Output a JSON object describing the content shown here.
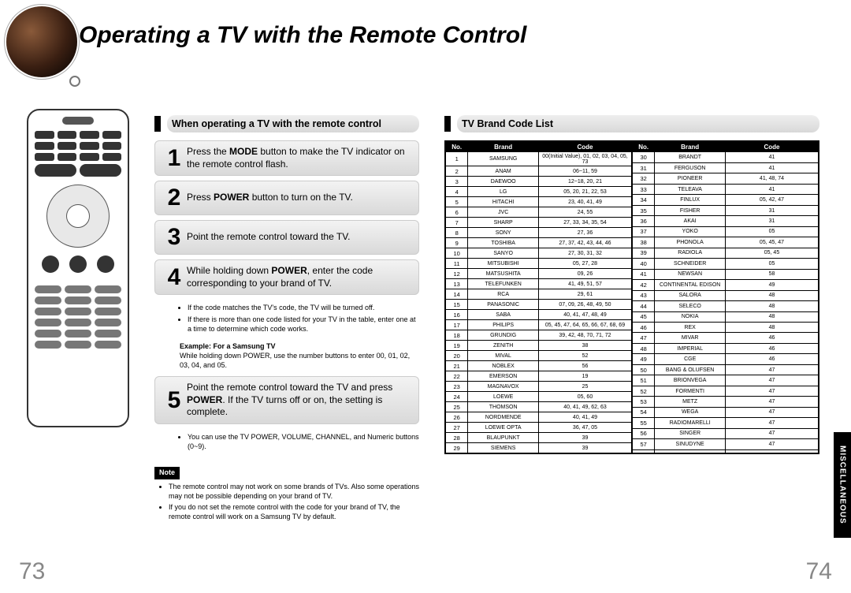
{
  "title": "Operating a TV with the Remote Control",
  "page_left": "73",
  "page_right": "74",
  "side_tab": "MISCELLANEOUS",
  "left": {
    "header": "When operating a TV with the remote control",
    "steps": [
      {
        "num": "1",
        "text_html": "Press the <b>MODE</b> button to make the TV indicator on the remote control flash."
      },
      {
        "num": "2",
        "text_html": "Press <b>POWER</b> button to turn on the TV."
      },
      {
        "num": "3",
        "text_html": "Point the remote control toward the TV."
      },
      {
        "num": "4",
        "text_html": "While holding down <b>POWER</b>, enter the code corresponding to your brand of TV."
      },
      {
        "num": "5",
        "text_html": "Point the remote control toward the TV and press <b>POWER</b>. If the TV turns off or on, the setting is complete."
      }
    ],
    "after_step4": [
      "If the code matches the TV's code, the TV will be turned off.",
      "If there is more than one code listed for your TV in the table, enter one at a time to determine which code works."
    ],
    "example_label": "Example: For a Samsung TV",
    "example_text": "While holding down POWER, use the number buttons to enter 00, 01, 02, 03, 04, and 05.",
    "after_step5": [
      "You can use the TV POWER, VOLUME, CHANNEL, and Numeric buttons (0~9)."
    ],
    "note_label": "Note",
    "notes": [
      "The remote control may not work on some brands of TVs. Also some operations may not be possible depending on your brand of TV.",
      "If you do not set the remote control with the code for your brand of TV, the remote control will work on a Samsung TV by default."
    ]
  },
  "right": {
    "header": "TV Brand Code List",
    "columns": [
      "No.",
      "Brand",
      "Code"
    ],
    "rowsA": [
      [
        "1",
        "SAMSUNG",
        "00(Initial Value), 01, 02, 03, 04, 05, 73"
      ],
      [
        "2",
        "ANAM",
        "06~11, 59"
      ],
      [
        "3",
        "DAEWOO",
        "12~18, 20, 21"
      ],
      [
        "4",
        "LG",
        "05, 20, 21, 22, 53"
      ],
      [
        "5",
        "HITACHI",
        "23, 40, 41, 49"
      ],
      [
        "6",
        "JVC",
        "24, 55"
      ],
      [
        "7",
        "SHARP",
        "27, 33, 34, 35, 54"
      ],
      [
        "8",
        "SONY",
        "27, 36"
      ],
      [
        "9",
        "TOSHIBA",
        "27, 37, 42, 43, 44, 46"
      ],
      [
        "10",
        "SANYO",
        "27, 30, 31, 32"
      ],
      [
        "11",
        "MITSUBISHI",
        "05, 27, 28"
      ],
      [
        "12",
        "MATSUSHITA",
        "09, 26"
      ],
      [
        "13",
        "TELEFUNKEN",
        "41, 49, 51, 57"
      ],
      [
        "14",
        "RCA",
        "29, 61"
      ],
      [
        "15",
        "PANASONIC",
        "07, 09, 26, 48, 49, 50"
      ],
      [
        "16",
        "SABA",
        "40, 41, 47, 48, 49"
      ],
      [
        "17",
        "PHILIPS",
        "05, 45, 47, 64, 65, 66, 67, 68, 69"
      ],
      [
        "18",
        "GRUNDIG",
        "39, 42, 48, 70, 71, 72"
      ],
      [
        "19",
        "ZENITH",
        "38"
      ],
      [
        "20",
        "MIVAL",
        "52"
      ],
      [
        "21",
        "NOBLEX",
        "56"
      ],
      [
        "22",
        "EMERSON",
        "19"
      ],
      [
        "23",
        "MAGNAVOX",
        "25"
      ],
      [
        "24",
        "LOEWE",
        "05, 60"
      ],
      [
        "25",
        "THOMSON",
        "40, 41, 49, 62, 63"
      ],
      [
        "26",
        "NORDMENDE",
        "40, 41, 49"
      ],
      [
        "27",
        "LOEWE OPTA",
        "36, 47, 05"
      ],
      [
        "28",
        "BLAUPUNKT",
        "39"
      ],
      [
        "29",
        "SIEMENS",
        "39"
      ]
    ],
    "rowsB": [
      [
        "30",
        "BRANDT",
        "41"
      ],
      [
        "31",
        "FERGUSON",
        "41"
      ],
      [
        "32",
        "PIONEER",
        "41, 48, 74"
      ],
      [
        "33",
        "TELEAVA",
        "41"
      ],
      [
        "34",
        "FINLUX",
        "05, 42, 47"
      ],
      [
        "35",
        "FISHER",
        "31"
      ],
      [
        "36",
        "AKAI",
        "31"
      ],
      [
        "37",
        "YOKO",
        "05"
      ],
      [
        "38",
        "PHONOLA",
        "05, 45, 47"
      ],
      [
        "39",
        "RADIOLA",
        "05, 45"
      ],
      [
        "40",
        "SCHNEIDER",
        "05"
      ],
      [
        "41",
        "NEWSAN",
        "58"
      ],
      [
        "42",
        "CONTINENTAL EDISON",
        "49"
      ],
      [
        "43",
        "SALORA",
        "48"
      ],
      [
        "44",
        "SELECO",
        "48"
      ],
      [
        "45",
        "NOKIA",
        "48"
      ],
      [
        "46",
        "REX",
        "48"
      ],
      [
        "47",
        "MIVAR",
        "46"
      ],
      [
        "48",
        "IMPERIAL",
        "46"
      ],
      [
        "49",
        "CGE",
        "46"
      ],
      [
        "50",
        "BANG & OLUFSEN",
        "47"
      ],
      [
        "51",
        "BRIONVEGA",
        "47"
      ],
      [
        "52",
        "FORMENTI",
        "47"
      ],
      [
        "53",
        "METZ",
        "47"
      ],
      [
        "54",
        "WEGA",
        "47"
      ],
      [
        "55",
        "RADIOMARELLI",
        "47"
      ],
      [
        "56",
        "SINGER",
        "47"
      ],
      [
        "57",
        "SINUDYNE",
        "47"
      ],
      [
        "",
        "",
        ""
      ]
    ]
  }
}
